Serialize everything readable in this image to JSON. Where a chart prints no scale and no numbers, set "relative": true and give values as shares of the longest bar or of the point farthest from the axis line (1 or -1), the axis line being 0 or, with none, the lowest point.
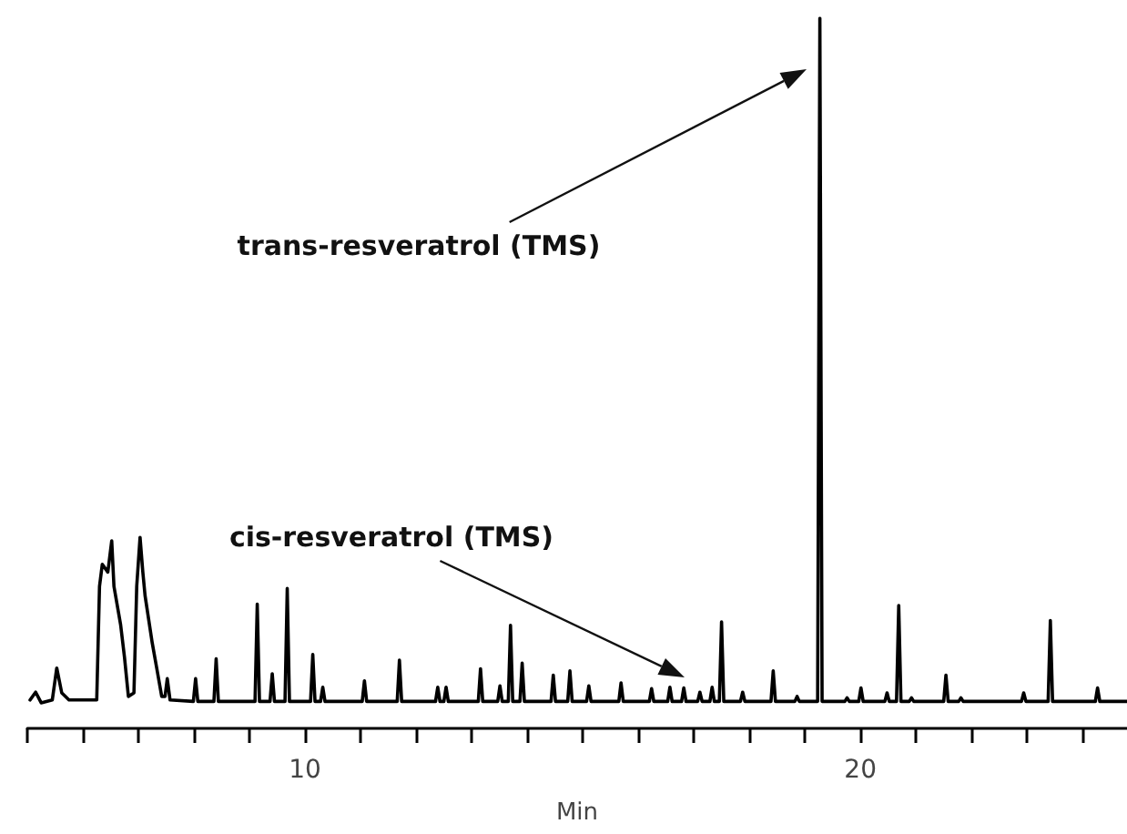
{
  "chart_data": {
    "type": "line",
    "relative": true,
    "xlabel": "Min",
    "xlim": [
      5,
      24.8
    ],
    "xticks": [
      {
        "value": 5,
        "label": null
      },
      {
        "value": 6,
        "label": null
      },
      {
        "value": 7,
        "label": null
      },
      {
        "value": 8,
        "label": null
      },
      {
        "value": 9,
        "label": null
      },
      10,
      {
        "value": 11,
        "label": null
      },
      {
        "value": 12,
        "label": null
      },
      {
        "value": 13,
        "label": null
      },
      {
        "value": 14,
        "label": null
      },
      {
        "value": 15,
        "label": null
      },
      {
        "value": 16,
        "label": null
      },
      {
        "value": 17,
        "label": null
      },
      {
        "value": 18,
        "label": null
      },
      {
        "value": 19,
        "label": null
      },
      20,
      {
        "value": 21,
        "label": null
      },
      {
        "value": 22,
        "label": null
      },
      {
        "value": 23,
        "label": null
      },
      {
        "value": 24,
        "label": null
      }
    ],
    "tick_labels": "x",
    "grid": false,
    "legend": false,
    "marker": "none",
    "line_style": "solid",
    "annotations": [
      "trans-resveratrol (TMS)",
      "cis-resveratrol (TMS)"
    ],
    "series": [
      {
        "color": "#000000",
        "x": [
          5.05,
          5.15,
          5.25,
          5.45,
          5.53,
          5.62,
          5.75,
          6.25,
          6.3,
          6.35,
          6.45,
          6.52,
          6.56,
          6.68,
          6.75,
          6.82,
          6.92,
          6.97,
          7.03,
          7.08,
          7.12,
          7.25,
          7.33,
          7.42,
          7.48,
          7.52,
          7.57,
          7.99,
          8.03,
          8.07,
          8.36,
          8.4,
          8.44,
          9.1,
          9.14,
          9.18,
          9.37,
          9.41,
          9.45,
          9.64,
          9.68,
          9.72,
          10.1,
          10.14,
          10.18,
          10.28,
          10.32,
          10.36,
          11.03,
          11.07,
          11.11,
          11.66,
          11.7,
          11.74,
          12.35,
          12.39,
          12.43,
          12.5,
          12.54,
          12.58,
          13.12,
          13.16,
          13.2,
          13.47,
          13.51,
          13.55,
          13.66,
          13.7,
          13.74,
          13.87,
          13.91,
          13.95,
          14.43,
          14.47,
          14.51,
          14.73,
          14.77,
          14.81,
          15.07,
          15.11,
          15.15,
          15.65,
          15.69,
          15.73,
          16.2,
          16.24,
          16.28,
          16.53,
          16.57,
          16.61,
          16.78,
          16.82,
          16.86,
          17.07,
          17.11,
          17.15,
          17.29,
          17.33,
          17.37,
          17.46,
          17.5,
          17.54,
          17.84,
          17.88,
          17.92,
          18.39,
          18.43,
          18.47,
          18.82,
          18.86,
          18.9,
          19.23,
          19.27,
          19.31,
          19.72,
          19.76,
          19.8,
          19.97,
          20.01,
          20.05,
          20.44,
          20.48,
          20.52,
          20.65,
          20.69,
          20.73,
          20.88,
          20.92,
          20.96,
          21.5,
          21.54,
          21.58,
          21.77,
          21.81,
          21.85,
          22.9,
          22.94,
          22.98,
          23.38,
          23.42,
          23.46,
          24.23,
          24.27,
          24.31,
          24.8
        ],
        "values": [
          0.04,
          0.051,
          0.036,
          0.04,
          0.085,
          0.05,
          0.04,
          0.04,
          0.2,
          0.231,
          0.22,
          0.264,
          0.2,
          0.146,
          0.1,
          0.045,
          0.05,
          0.2,
          0.269,
          0.22,
          0.187,
          0.12,
          0.085,
          0.045,
          0.045,
          0.07,
          0.04,
          0.038,
          0.07,
          0.038,
          0.038,
          0.098,
          0.038,
          0.038,
          0.175,
          0.038,
          0.038,
          0.077,
          0.038,
          0.038,
          0.197,
          0.038,
          0.038,
          0.104,
          0.038,
          0.038,
          0.058,
          0.038,
          0.038,
          0.067,
          0.038,
          0.038,
          0.096,
          0.038,
          0.038,
          0.058,
          0.038,
          0.038,
          0.058,
          0.038,
          0.038,
          0.084,
          0.038,
          0.038,
          0.06,
          0.038,
          0.038,
          0.145,
          0.038,
          0.038,
          0.092,
          0.038,
          0.038,
          0.075,
          0.038,
          0.038,
          0.081,
          0.038,
          0.038,
          0.06,
          0.038,
          0.038,
          0.064,
          0.038,
          0.038,
          0.056,
          0.038,
          0.038,
          0.058,
          0.038,
          0.038,
          0.057,
          0.038,
          0.038,
          0.051,
          0.038,
          0.038,
          0.058,
          0.038,
          0.038,
          0.15,
          0.038,
          0.038,
          0.051,
          0.038,
          0.038,
          0.081,
          0.038,
          0.038,
          0.045,
          0.038,
          0.038,
          1,
          0.038,
          0.038,
          0.043,
          0.038,
          0.038,
          0.057,
          0.038,
          0.038,
          0.05,
          0.038,
          0.038,
          0.173,
          0.038,
          0.038,
          0.043,
          0.038,
          0.038,
          0.075,
          0.038,
          0.038,
          0.043,
          0.038,
          0.038,
          0.05,
          0.038,
          0.038,
          0.152,
          0.038,
          0.038,
          0.057,
          0.038,
          0.038
        ]
      }
    ]
  }
}
